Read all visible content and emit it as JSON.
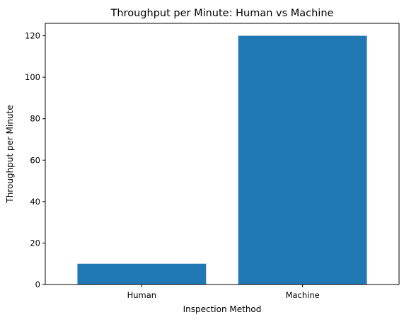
{
  "chart_data": {
    "type": "bar",
    "title": "Throughput per Minute: Human vs Machine",
    "xlabel": "Inspection Method",
    "ylabel": "Throughput per Minute",
    "categories": [
      "Human",
      "Machine"
    ],
    "values": [
      10,
      120
    ],
    "ylim": [
      0,
      126
    ],
    "yticks": [
      0,
      20,
      40,
      60,
      80,
      100,
      120
    ],
    "bar_color": "#1f77b4",
    "grid": false,
    "legend": "none"
  }
}
